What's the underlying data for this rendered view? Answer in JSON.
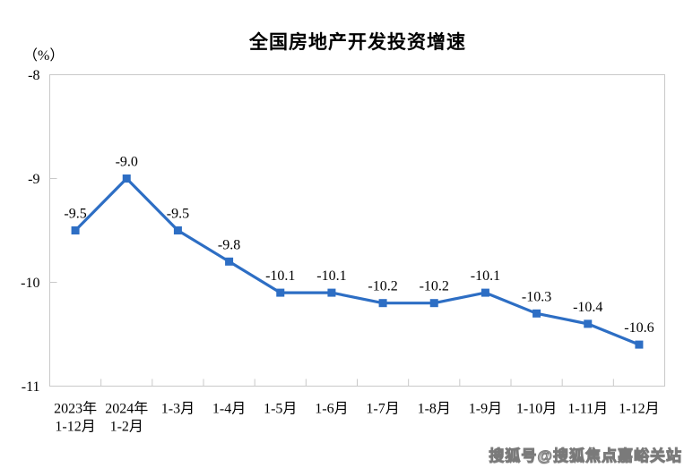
{
  "watermark": {
    "text": "搜狐号@搜狐焦点嘉峪关站"
  },
  "chart_data": {
    "type": "line",
    "title": "全国房地产开发投资增速",
    "ylabel": "（%）",
    "xlabel": "",
    "categories": [
      "2023年\n1-12月",
      "2024年\n1-2月",
      "1-3月",
      "1-4月",
      "1-5月",
      "1-6月",
      "1-7月",
      "1-8月",
      "1-9月",
      "1-10月",
      "1-11月",
      "1-12月"
    ],
    "values": [
      -9.5,
      -9.0,
      -9.5,
      -9.8,
      -10.1,
      -10.1,
      -10.2,
      -10.2,
      -10.1,
      -10.3,
      -10.4,
      -10.6
    ],
    "data_labels": [
      "-9.5",
      "-9.0",
      "-9.5",
      "-9.8",
      "-10.1",
      "-10.1",
      "-10.2",
      "-10.2",
      "-10.1",
      "-10.3",
      "-10.4",
      "-10.6"
    ],
    "ylim": [
      -11,
      -8
    ],
    "yticks": [
      -8,
      -9,
      -10,
      -11
    ],
    "grid": false,
    "legend": "none",
    "marker": "square",
    "line_color": "#2D6EC4",
    "axis_color": "#C9C9C9",
    "text_color": "#000000"
  }
}
